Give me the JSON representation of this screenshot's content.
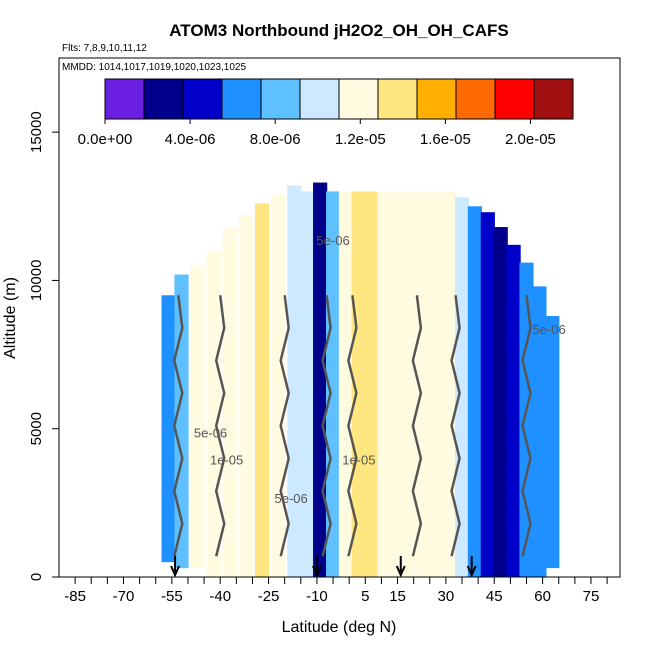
{
  "chart_data": {
    "type": "heatmap",
    "title": "ATOM3 Northbound jH2O2_OH_OH_CAFS",
    "subtitle_flights": "Flts: 7,8,9,10,11,12",
    "subtitle_dates": "MMDD: 1014,1017,1019,1020,1023,1025",
    "xlabel": "Latitude (deg N)",
    "ylabel": "Altitude (m)",
    "xlim": [
      -90,
      84
    ],
    "ylim": [
      0,
      17500
    ],
    "x_ticks": [
      "-85",
      "-70",
      "-55",
      "-40",
      "-25",
      "-10",
      "5",
      "15",
      "30",
      "45",
      "60",
      "75"
    ],
    "x_tick_values": [
      -85,
      -70,
      -55,
      -40,
      -25,
      -10,
      5,
      15,
      30,
      45,
      60,
      75
    ],
    "y_ticks": [
      "0",
      "5000",
      "10000",
      "15000"
    ],
    "y_tick_values": [
      0,
      5000,
      10000,
      15000
    ],
    "colorbar": {
      "range": [
        0,
        2.2e-05
      ],
      "tick_labels": [
        "0.0e+00",
        "4.0e-06",
        "8.0e-06",
        "1.2e-05",
        "1.6e-05",
        "2.0e-05"
      ],
      "tick_values": [
        0,
        4e-06,
        8e-06,
        1.2e-05,
        1.6e-05,
        2e-05
      ],
      "colors": [
        "#6b1fe0",
        "#00008a",
        "#0000c8",
        "#1e90ff",
        "#5fc0ff",
        "#cde9ff",
        "#fffbe0",
        "#ffe680",
        "#ffb000",
        "#ff6a00",
        "#ff0000",
        "#a01010"
      ]
    },
    "contour_labels": [
      "5e-06",
      "1e-05",
      "5e-06",
      "1e-05",
      "5e-06",
      "5e-06"
    ],
    "flight_arrow_latitudes": [
      -54,
      -10,
      16,
      38
    ],
    "columns": [
      {
        "lat": -56,
        "top": 9500,
        "bottom": 500,
        "value": 6e-06
      },
      {
        "lat": -52,
        "top": 10200,
        "bottom": 300,
        "value": 9e-06
      },
      {
        "lat": -47,
        "top": 10500,
        "bottom": 300,
        "value": 1.15e-05
      },
      {
        "lat": -42,
        "top": 11000,
        "bottom": 0,
        "value": 1.25e-05
      },
      {
        "lat": -37,
        "top": 11800,
        "bottom": 0,
        "value": 1.28e-05
      },
      {
        "lat": -32,
        "top": 12200,
        "bottom": 0,
        "value": 1.25e-05
      },
      {
        "lat": -27,
        "top": 12600,
        "bottom": 0,
        "value": 1.35e-05
      },
      {
        "lat": -22,
        "top": 12900,
        "bottom": 0,
        "value": 1.2e-05
      },
      {
        "lat": -17,
        "top": 13200,
        "bottom": 0,
        "value": 9.5e-06
      },
      {
        "lat": -13,
        "top": 13000,
        "bottom": 0,
        "value": 1.05e-05
      },
      {
        "lat": -9,
        "top": 13300,
        "bottom": 0,
        "value": 2e-06
      },
      {
        "lat": -5,
        "top": 13000,
        "bottom": 0,
        "value": 8e-06
      },
      {
        "lat": -1,
        "top": 13000,
        "bottom": 0,
        "value": 1.2e-05
      },
      {
        "lat": 3,
        "top": 13000,
        "bottom": 0,
        "value": 1.35e-05
      },
      {
        "lat": 7,
        "top": 13000,
        "bottom": 0,
        "value": 1.4e-05
      },
      {
        "lat": 11,
        "top": 13000,
        "bottom": 0,
        "value": 1.25e-05
      },
      {
        "lat": 15,
        "top": 13000,
        "bottom": 0,
        "value": 1.2e-05
      },
      {
        "lat": 19,
        "top": 13000,
        "bottom": 0,
        "value": 1.25e-05
      },
      {
        "lat": 23,
        "top": 13000,
        "bottom": 0,
        "value": 1.28e-05
      },
      {
        "lat": 27,
        "top": 13000,
        "bottom": 0,
        "value": 1.25e-05
      },
      {
        "lat": 31,
        "top": 13000,
        "bottom": 0,
        "value": 1.2e-05
      },
      {
        "lat": 35,
        "top": 12800,
        "bottom": 0,
        "value": 1.05e-05
      },
      {
        "lat": 39,
        "top": 12500,
        "bottom": 0,
        "value": 7e-06
      },
      {
        "lat": 43,
        "top": 12300,
        "bottom": 0,
        "value": 4.5e-06
      },
      {
        "lat": 47,
        "top": 11800,
        "bottom": 0,
        "value": 3.5e-06
      },
      {
        "lat": 51,
        "top": 11200,
        "bottom": 0,
        "value": 4.5e-06
      },
      {
        "lat": 55,
        "top": 10600,
        "bottom": 0,
        "value": 6e-06
      },
      {
        "lat": 59,
        "top": 9800,
        "bottom": 0,
        "value": 7e-06
      },
      {
        "lat": 63,
        "top": 8800,
        "bottom": 300,
        "value": 5.5e-06
      }
    ]
  }
}
